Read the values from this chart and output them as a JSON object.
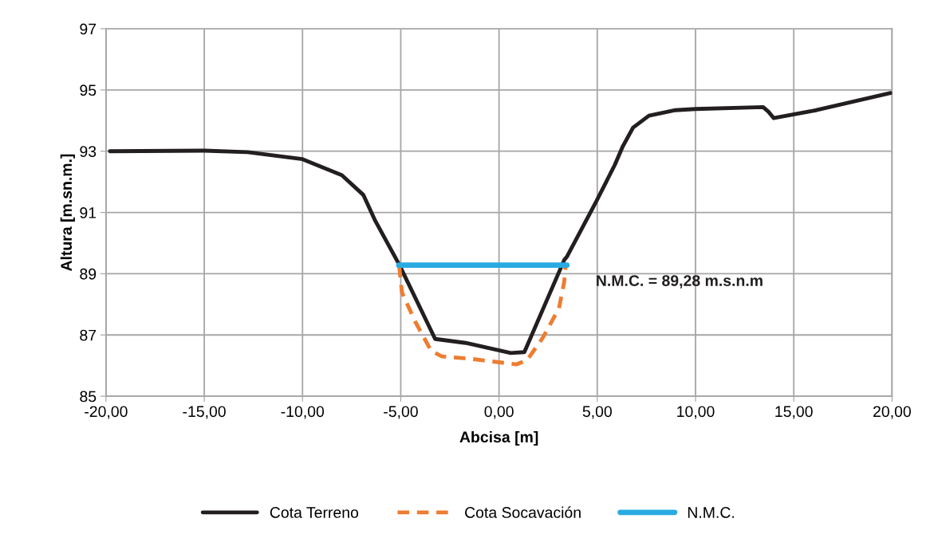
{
  "chart_data": {
    "type": "line",
    "xlabel": "Abcisa [m]",
    "ylabel": "Altura [m.sn.m.]",
    "xlim": [
      -20,
      20
    ],
    "ylim": [
      85,
      97
    ],
    "xticks": [
      {
        "value": -20,
        "label": "-20,00"
      },
      {
        "value": -15,
        "label": "-15,00"
      },
      {
        "value": -10,
        "label": "-10,00"
      },
      {
        "value": -5,
        "label": "-5,00"
      },
      {
        "value": 0,
        "label": "0,00"
      },
      {
        "value": 5,
        "label": "5,00"
      },
      {
        "value": 10,
        "label": "10,00"
      },
      {
        "value": 15,
        "label": "15,00"
      },
      {
        "value": 20,
        "label": "20,00"
      }
    ],
    "yticks": [
      85,
      87,
      89,
      91,
      93,
      95,
      97
    ],
    "grid": true,
    "legend": "bottom",
    "marker": "none",
    "series": [
      {
        "name": "Cota Terreno",
        "color": "#231f20",
        "line_style": "solid",
        "x": [
          -19.8,
          -15,
          -12.8,
          -10,
          -8.0,
          -6.9,
          -6.3,
          -5.08,
          -3.25,
          -1.7,
          0.6,
          1.29,
          3.32,
          3.45,
          4.94,
          5.89,
          6.3,
          6.82,
          7.63,
          8.98,
          10.0,
          13.44,
          13.71,
          13.98,
          16.15,
          19.93
        ],
        "values": [
          93.0,
          93.02,
          92.97,
          92.74,
          92.22,
          91.57,
          90.73,
          89.3,
          86.87,
          86.74,
          86.41,
          86.44,
          89.45,
          89.55,
          91.35,
          92.55,
          93.16,
          93.77,
          94.16,
          94.34,
          94.38,
          94.44,
          94.29,
          94.08,
          94.34,
          94.9
        ]
      },
      {
        "name": "Cota Socavación",
        "color": "#ed7d31",
        "line_style": "dashed",
        "x": [
          -5.08,
          -4.94,
          -4.26,
          -3.45,
          -2.91,
          -1.42,
          0.88,
          1.42,
          2.23,
          3.05,
          3.32,
          3.38
        ],
        "values": [
          89.26,
          88.39,
          87.43,
          86.48,
          86.3,
          86.22,
          86.04,
          86.17,
          86.91,
          87.87,
          88.74,
          89.21
        ]
      },
      {
        "name": "N.M.C.",
        "color": "#29abe2",
        "line_style": "solid",
        "x": [
          -5.1,
          3.45
        ],
        "values": [
          89.28,
          89.28
        ]
      }
    ],
    "annotations": [
      "N.M.C. = 89,28 m.s.n.m"
    ]
  }
}
